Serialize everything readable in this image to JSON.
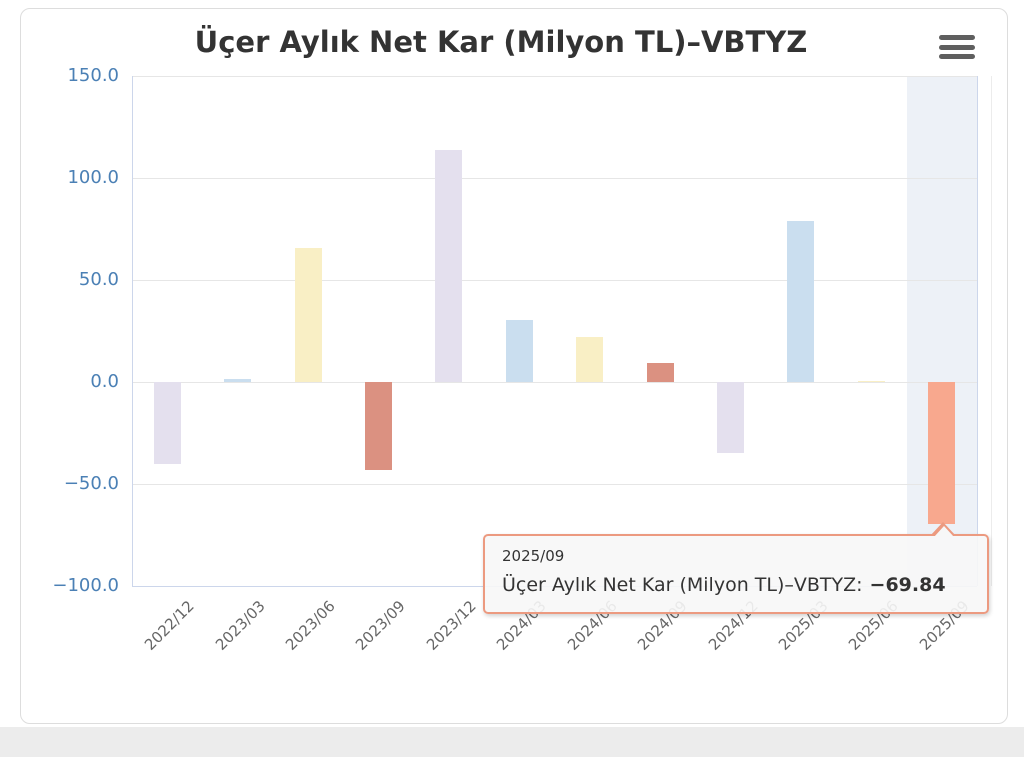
{
  "chart_data": {
    "type": "bar",
    "title": "Üçer Aylık Net Kar (Milyon TL)–VBTYZ",
    "xlabel": "",
    "ylabel": "",
    "categories": [
      "2022/12",
      "2023/03",
      "2023/06",
      "2023/09",
      "2023/12",
      "2024/03",
      "2024/06",
      "2024/09",
      "2024/12",
      "2025/03",
      "2025/06",
      "2025/09"
    ],
    "values": [
      -40.2,
      1.5,
      65.7,
      -43.0,
      113.7,
      30.4,
      22.1,
      9.3,
      -34.6,
      78.9,
      0.6,
      -69.84
    ],
    "ylim": [
      -100,
      150
    ],
    "yticks": [
      150,
      100,
      50,
      0,
      -50,
      -100
    ],
    "ytick_labels": [
      "150.0",
      "100.0",
      "50.0",
      "0.0",
      "−50.0",
      "−100.0"
    ],
    "grid": true,
    "legend": false,
    "highlighted_index": 11,
    "palette": [
      "#e4e0ee",
      "#cadeef",
      "#f9efc5",
      "#db9181"
    ],
    "hover_bar_color": "#f8a88e",
    "hover_band_color": "#edf1f7",
    "grid_color": "#e6e6e6",
    "axis_line_color": "#ccd6eb",
    "edge_line_color": "#ececec",
    "y_label_color": "#4b80b5",
    "x_label_color": "#666666",
    "title_color": "#333333"
  },
  "tooltip": {
    "category": "2025/09",
    "series_label": "Üçer Aylık Net Kar (Milyon TL)–VBTYZ:",
    "value": "−69.84",
    "border_color": "#ec9a80",
    "background": "#f7f7f7"
  },
  "export_menu": {
    "icon": "hamburger-menu-icon",
    "color": "#5f5f5f"
  },
  "page": {
    "card_border": "#dddddd",
    "bottom_strip_color": "#ececec",
    "background": "#ffffff"
  }
}
